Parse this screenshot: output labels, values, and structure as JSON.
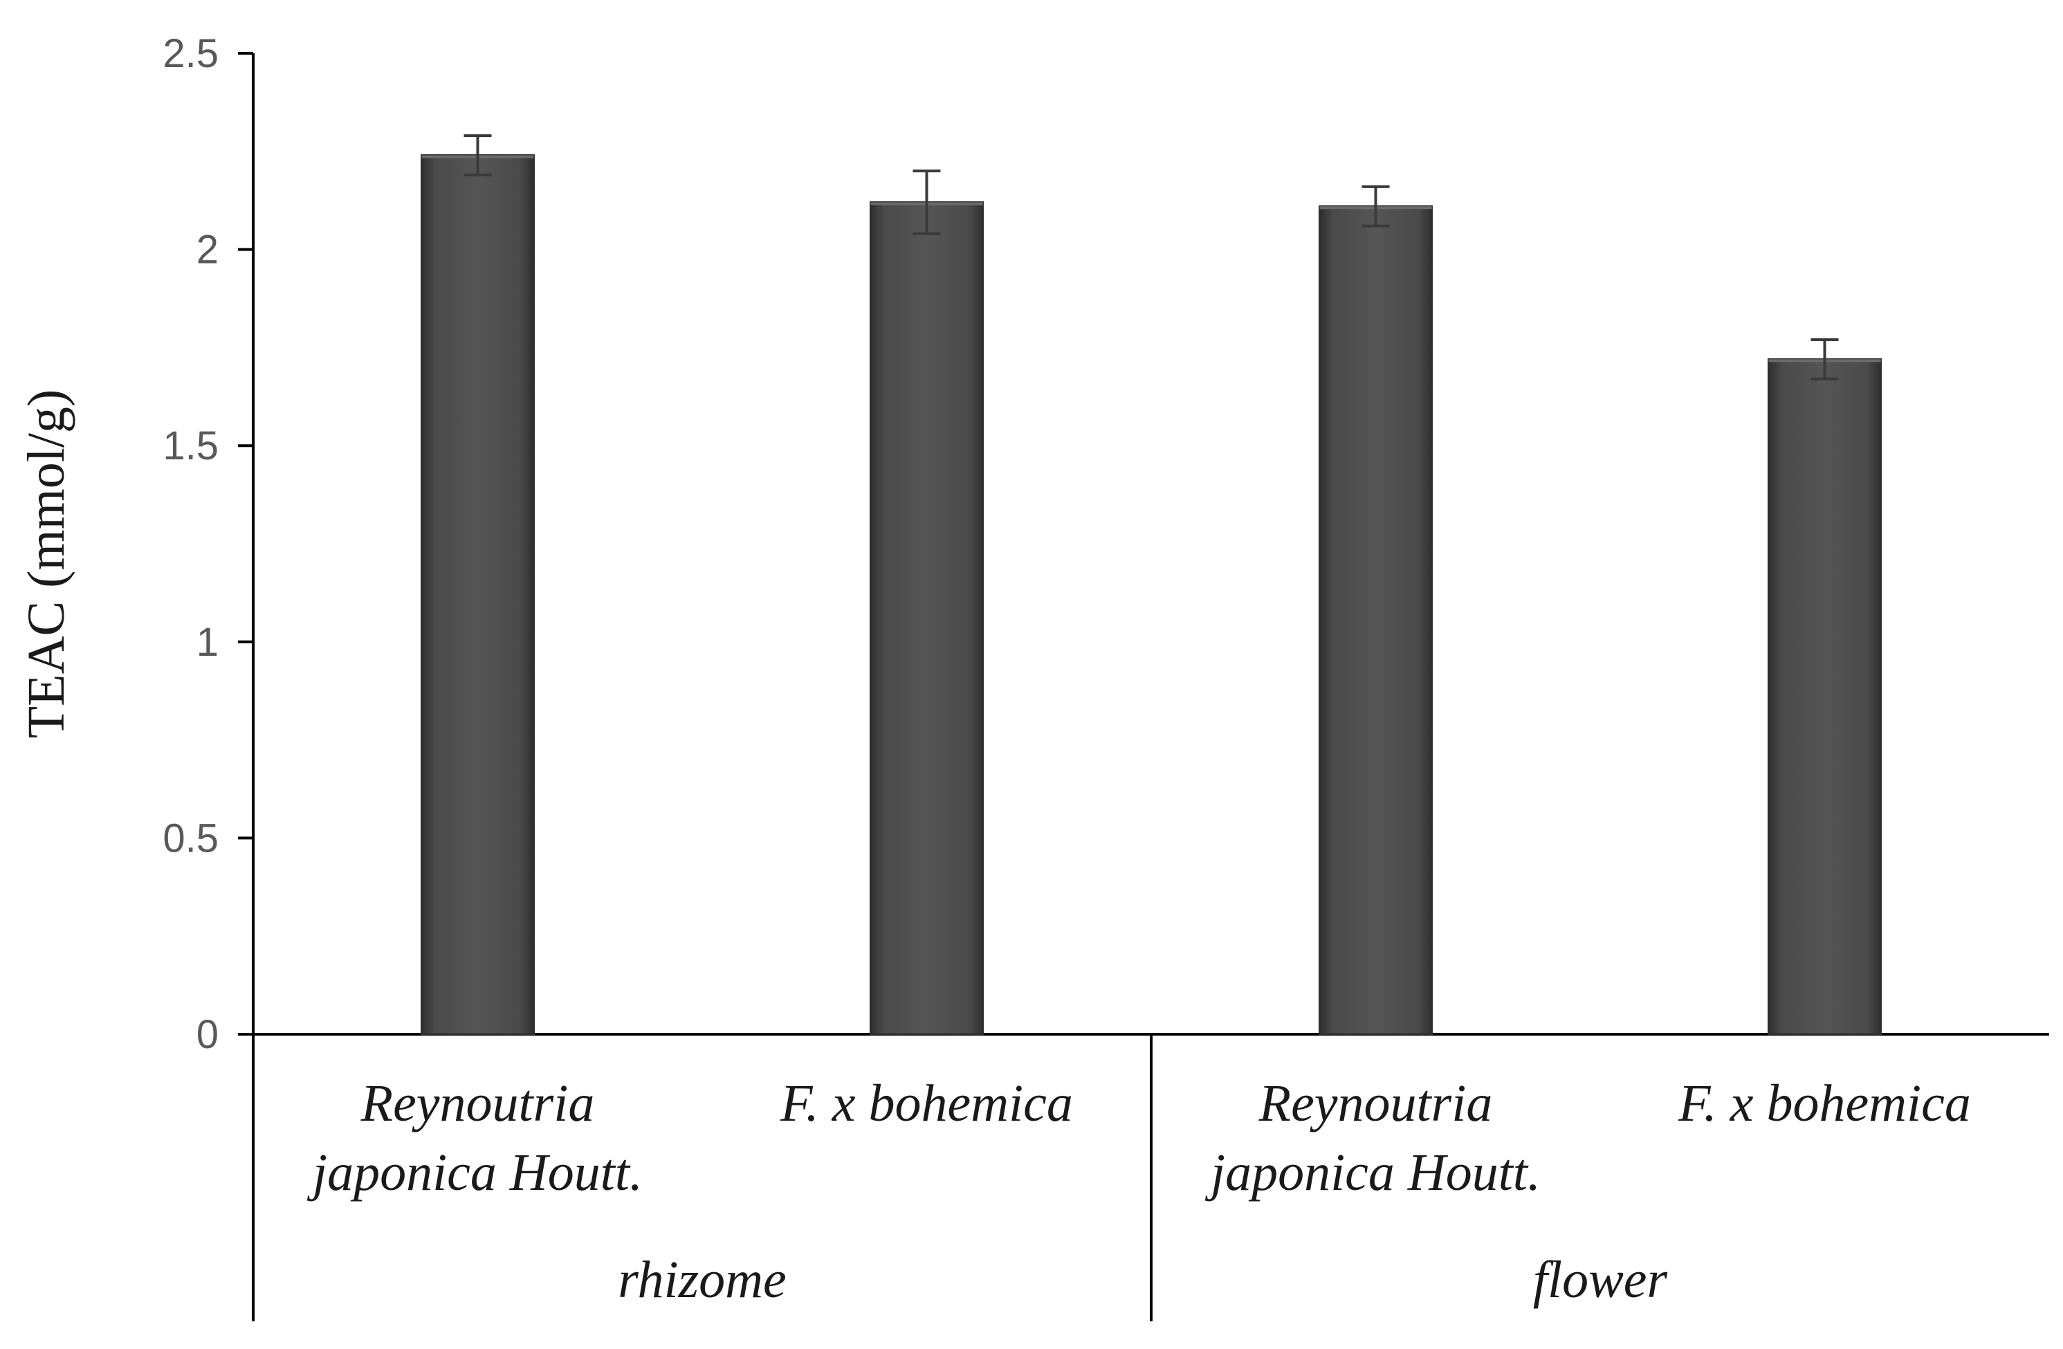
{
  "chart_data": {
    "type": "bar",
    "ylabel": "TEAC (mmol/g)",
    "ylim": [
      0,
      2.5
    ],
    "yticks": [
      "0",
      "0.5",
      "1",
      "1.5",
      "2",
      "2.5"
    ],
    "grid": false,
    "legend": "none",
    "groups": [
      {
        "name": "rhizome",
        "categories": [
          {
            "lines": [
              "Reynoutria",
              "japonica Houtt."
            ],
            "value": 2.24,
            "error": 0.05
          },
          {
            "lines": [
              "F. x bohemica"
            ],
            "value": 2.12,
            "error": 0.08
          }
        ]
      },
      {
        "name": "flower",
        "categories": [
          {
            "lines": [
              "Reynoutria",
              "japonica Houtt."
            ],
            "value": 2.11,
            "error": 0.05
          },
          {
            "lines": [
              "F. x bohemica"
            ],
            "value": 1.72,
            "error": 0.05
          }
        ]
      }
    ],
    "colors": {
      "bar": "#4a4a4a",
      "bar_edge": "#2e2e2e",
      "axis": "#000000",
      "error_bar": "#3a3a3a"
    }
  }
}
